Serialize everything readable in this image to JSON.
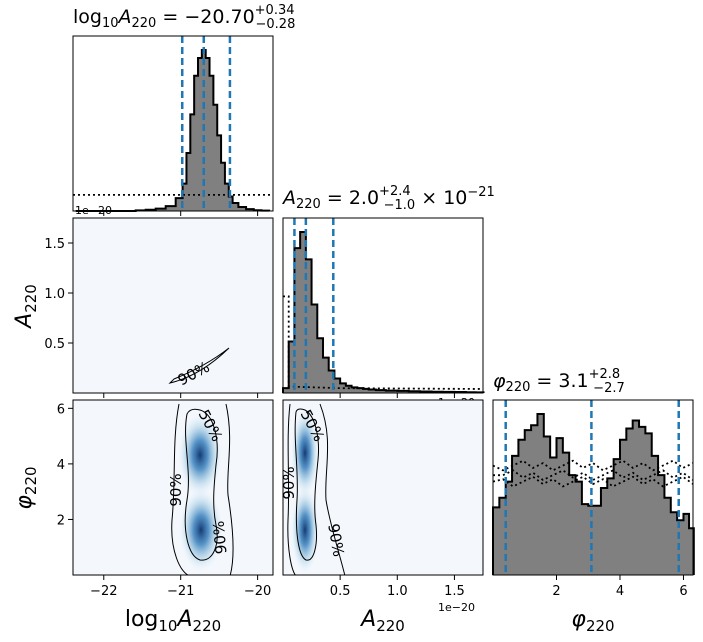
{
  "chart_data": {
    "type": "corner",
    "parameters": [
      {
        "key": "logA220",
        "axis_label": "log10A220",
        "title": "log10A220 = −20.70 +0.34 −0.28",
        "median": -20.7,
        "err_plus": 0.34,
        "err_minus": 0.28,
        "quantile_lines": [
          -20.98,
          -20.7,
          -20.36
        ],
        "range": [
          -22.4,
          -19.8
        ],
        "ticks": [
          -22,
          -21,
          -20
        ],
        "tick_labels": [
          "−22",
          "−21",
          "−20"
        ]
      },
      {
        "key": "A220",
        "axis_label": "A220",
        "title": "A220 = 2.0 +2.4 −1.0 × 10−21",
        "median": 2e-21,
        "err_plus": 2.4e-21,
        "err_minus": 1e-21,
        "scale_text": "1e−20",
        "quantile_lines": [
          0.1,
          0.2,
          0.44
        ],
        "range": [
          0.0,
          1.75
        ],
        "ticks": [
          0.5,
          1.0,
          1.5
        ],
        "tick_labels": [
          "0.5",
          "1.0",
          "1.5"
        ],
        "y_ticks": [
          0.5,
          1.0,
          1.5
        ],
        "y_tick_labels": [
          "0.5",
          "1.0",
          "1.5"
        ]
      },
      {
        "key": "phi220",
        "axis_label": "φ220",
        "title": "φ220 = 3.1 +2.8 −2.7",
        "median": 3.1,
        "err_plus": 2.8,
        "err_minus": 2.7,
        "quantile_lines": [
          0.4,
          3.1,
          5.85
        ],
        "range": [
          0.0,
          6.3
        ],
        "ticks": [
          2,
          4,
          6
        ],
        "tick_labels": [
          "2",
          "4",
          "6"
        ],
        "y_ticks": [
          2,
          4,
          6
        ],
        "y_tick_labels": [
          "2",
          "4",
          "6"
        ]
      }
    ],
    "histograms": {
      "logA220": {
        "centers": [
          -22.3,
          -22.17,
          -22.04,
          -21.91,
          -21.78,
          -21.65,
          -21.52,
          -21.39,
          -21.26,
          -21.13,
          -21.0,
          -20.95,
          -20.9,
          -20.85,
          -20.8,
          -20.75,
          -20.7,
          -20.65,
          -20.6,
          -20.55,
          -20.5,
          -20.45,
          -20.4,
          -20.35,
          -20.3,
          -20.2,
          -20.1,
          -20.0,
          -19.9
        ],
        "counts": [
          0,
          0,
          0,
          0,
          0,
          0,
          0.004,
          0.008,
          0.015,
          0.03,
          0.08,
          0.17,
          0.36,
          0.6,
          0.84,
          0.95,
          1.0,
          0.95,
          0.84,
          0.66,
          0.47,
          0.3,
          0.17,
          0.09,
          0.05,
          0.025,
          0.012,
          0.005,
          0.002
        ],
        "prior_level": 0.1
      },
      "A220": {
        "centers": [
          0.025,
          0.075,
          0.125,
          0.175,
          0.225,
          0.275,
          0.325,
          0.375,
          0.425,
          0.475,
          0.525,
          0.575,
          0.625,
          0.675,
          0.725,
          0.775,
          0.85,
          0.95,
          1.05,
          1.15,
          1.25,
          1.35,
          1.45,
          1.55,
          1.65,
          1.72
        ],
        "counts": [
          0.03,
          0.32,
          0.9,
          1.0,
          0.83,
          0.55,
          0.34,
          0.22,
          0.14,
          0.09,
          0.06,
          0.045,
          0.035,
          0.03,
          0.026,
          0.022,
          0.018,
          0.015,
          0.013,
          0.011,
          0.009,
          0.008,
          0.007,
          0.006,
          0.005,
          0.004
        ],
        "prior_level": 0.6
      },
      "phi220": {
        "centers": [
          0.1,
          0.3,
          0.5,
          0.7,
          0.9,
          1.1,
          1.3,
          1.5,
          1.7,
          1.9,
          2.1,
          2.3,
          2.5,
          2.7,
          2.9,
          3.1,
          3.3,
          3.5,
          3.7,
          3.9,
          4.1,
          4.3,
          4.5,
          4.7,
          4.9,
          5.1,
          5.3,
          5.5,
          5.7,
          5.9,
          6.1,
          6.25
        ],
        "counts": [
          0.42,
          0.48,
          0.58,
          0.74,
          0.84,
          0.9,
          0.93,
          1.0,
          0.86,
          0.73,
          0.85,
          0.76,
          0.62,
          0.58,
          0.44,
          0.43,
          0.43,
          0.54,
          0.6,
          0.72,
          0.84,
          0.91,
          0.96,
          0.92,
          0.88,
          0.74,
          0.62,
          0.48,
          0.39,
          0.34,
          0.38,
          0.29
        ],
        "prior_levels": [
          0.62,
          0.68,
          0.58
        ]
      }
    },
    "contours": {
      "logA220_A220": {
        "labels": [
          "90%"
        ]
      },
      "logA220_phi220": {
        "labels": [
          "50%",
          "90%",
          "90%"
        ]
      },
      "A220_phi220": {
        "labels": [
          "50%",
          "90%",
          "90%"
        ]
      }
    },
    "colors": {
      "hist_fill": "#808080",
      "hist_edge": "#000000",
      "quantile_line": "#1f77b4",
      "density": "#08306b"
    }
  }
}
